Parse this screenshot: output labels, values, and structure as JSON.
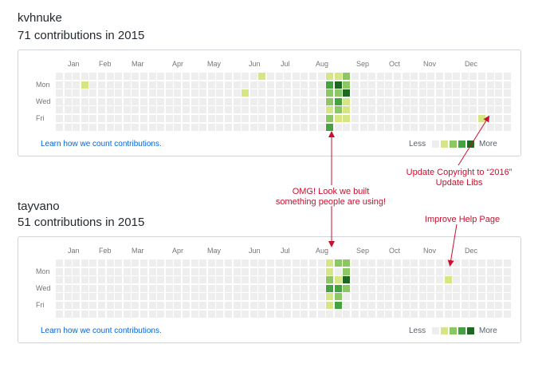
{
  "colors": {
    "empty": "#eeeeee",
    "level1": "#d6e685",
    "level2": "#8cc665",
    "level3": "#44a340",
    "level4": "#1e6823",
    "annotation": "#c8102e",
    "link": "#0366d6"
  },
  "calendar_labels": {
    "months": [
      "Jan",
      "Feb",
      "Mar",
      "Apr",
      "May",
      "Jun",
      "Jul",
      "Aug",
      "Sep",
      "Oct",
      "Nov",
      "Dec"
    ],
    "days": [
      "Mon",
      "Wed",
      "Fri"
    ],
    "learn_link": "Learn how we count contributions.",
    "legend_less": "Less",
    "legend_more": "More"
  },
  "profiles": [
    {
      "username": "kvhnuke",
      "contributions_text": "71 contributions in 2015",
      "contributions": [
        {
          "week": 3,
          "day": 1,
          "level": 1
        },
        {
          "week": 22,
          "day": 2,
          "level": 1
        },
        {
          "week": 24,
          "day": 0,
          "level": 1
        },
        {
          "week": 32,
          "day": 0,
          "level": 1
        },
        {
          "week": 32,
          "day": 1,
          "level": 3
        },
        {
          "week": 32,
          "day": 2,
          "level": 2
        },
        {
          "week": 32,
          "day": 3,
          "level": 2
        },
        {
          "week": 32,
          "day": 4,
          "level": 1
        },
        {
          "week": 32,
          "day": 5,
          "level": 2
        },
        {
          "week": 32,
          "day": 6,
          "level": 3
        },
        {
          "week": 33,
          "day": 0,
          "level": 1
        },
        {
          "week": 33,
          "day": 1,
          "level": 4
        },
        {
          "week": 33,
          "day": 2,
          "level": 2
        },
        {
          "week": 33,
          "day": 3,
          "level": 3
        },
        {
          "week": 33,
          "day": 4,
          "level": 2
        },
        {
          "week": 33,
          "day": 5,
          "level": 1
        },
        {
          "week": 34,
          "day": 0,
          "level": 2
        },
        {
          "week": 34,
          "day": 1,
          "level": 2
        },
        {
          "week": 34,
          "day": 2,
          "level": 4
        },
        {
          "week": 34,
          "day": 3,
          "level": 1
        },
        {
          "week": 34,
          "day": 4,
          "level": 1
        },
        {
          "week": 34,
          "day": 5,
          "level": 1
        },
        {
          "week": 50,
          "day": 5,
          "level": 1
        }
      ]
    },
    {
      "username": "tayvano",
      "contributions_text": "51 contributions in 2015",
      "contributions": [
        {
          "week": 32,
          "day": 0,
          "level": 1
        },
        {
          "week": 32,
          "day": 1,
          "level": 1
        },
        {
          "week": 32,
          "day": 2,
          "level": 2
        },
        {
          "week": 32,
          "day": 3,
          "level": 3
        },
        {
          "week": 32,
          "day": 4,
          "level": 1
        },
        {
          "week": 32,
          "day": 5,
          "level": 1
        },
        {
          "week": 33,
          "day": 0,
          "level": 2
        },
        {
          "week": 33,
          "day": 2,
          "level": 1
        },
        {
          "week": 33,
          "day": 3,
          "level": 3
        },
        {
          "week": 33,
          "day": 4,
          "level": 2
        },
        {
          "week": 33,
          "day": 5,
          "level": 3
        },
        {
          "week": 34,
          "day": 0,
          "level": 2
        },
        {
          "week": 34,
          "day": 1,
          "level": 2
        },
        {
          "week": 34,
          "day": 2,
          "level": 4
        },
        {
          "week": 34,
          "day": 3,
          "level": 2
        },
        {
          "week": 46,
          "day": 2,
          "level": 1
        }
      ]
    }
  ],
  "annotations": {
    "update": {
      "line1": "Update Copyright to “2016”",
      "line2": "Update Libs"
    },
    "omg": {
      "line1": "OMG! Look we built",
      "line2": "something people are using!"
    },
    "help": {
      "line1": "Improve Help Page"
    }
  }
}
